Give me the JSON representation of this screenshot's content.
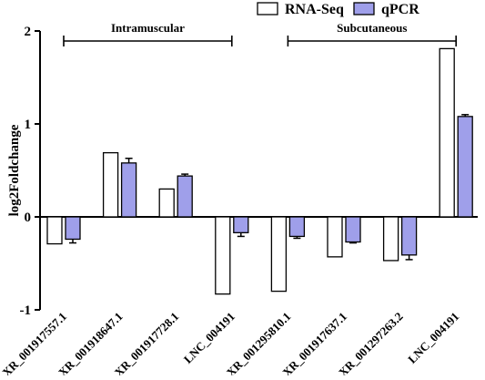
{
  "chart_data": {
    "type": "bar",
    "ylabel": "log2Foldchange",
    "xlabel": "",
    "ylim": [
      -1,
      2
    ],
    "yticks": [
      -1,
      0,
      1,
      2
    ],
    "categories": [
      "XR_001917557.1",
      "XR_001918647.1",
      "XR_001917728.1",
      "LNC_004191",
      "XR_001295810.1",
      "XR_001917637.1",
      "XR_001297263.2",
      "LNC_004191"
    ],
    "series": [
      {
        "name": "RNA-Seq",
        "values": [
          -0.29,
          0.69,
          0.3,
          -0.83,
          -0.8,
          -0.43,
          -0.47,
          1.81
        ],
        "errors": [
          0,
          0,
          0,
          0,
          0,
          0,
          0,
          0
        ],
        "color": "#ffffff"
      },
      {
        "name": "qPCR",
        "values": [
          -0.24,
          0.58,
          0.44,
          -0.17,
          -0.21,
          -0.27,
          -0.41,
          1.08
        ],
        "errors": [
          0.04,
          0.05,
          0.02,
          0.04,
          0.02,
          0.01,
          0.05,
          0.02
        ],
        "color": "#9f9fea"
      }
    ],
    "groups": [
      {
        "label": "Intramuscular",
        "start": 0,
        "end": 3
      },
      {
        "label": "Subcutaneous",
        "start": 4,
        "end": 7
      }
    ],
    "legend": "top-right",
    "grid": false
  }
}
